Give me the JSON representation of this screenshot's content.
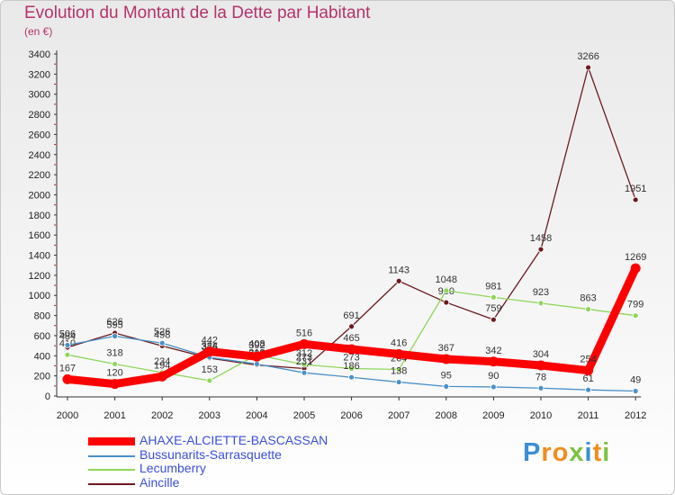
{
  "chart_data": {
    "type": "line",
    "title": "Evolution du Montant de la Dette par Habitant",
    "subtitle": "(en €)",
    "xlabel": "",
    "ylabel": "",
    "categories": [
      "2000",
      "2001",
      "2002",
      "2003",
      "2004",
      "2005",
      "2006",
      "2007",
      "2008",
      "2009",
      "2010",
      "2011",
      "2012"
    ],
    "ylim": [
      0,
      3400
    ],
    "yticks": [
      0,
      200,
      400,
      600,
      800,
      1000,
      1200,
      1400,
      1600,
      1800,
      2000,
      2200,
      2400,
      2600,
      2800,
      3000,
      3200,
      3400
    ],
    "grid": false,
    "legend_position": "bottom-left",
    "series": [
      {
        "name": "Aincille",
        "color": "#6b1a1f",
        "values": [
          484,
          626,
          498,
          376,
          308,
          273,
          691,
          1143,
          930,
          759,
          1458,
          3266,
          1951
        ]
      },
      {
        "name": "Lecumberry",
        "color": "#8fd65a",
        "values": [
          410,
          318,
          234,
          153,
          408,
          312,
          273,
          264,
          1048,
          981,
          923,
          863,
          799
        ]
      },
      {
        "name": "Bussunarits-Sarrasquette",
        "color": "#4a90c8",
        "values": [
          506,
          595,
          526,
          384,
          318,
          231,
          186,
          138,
          95,
          90,
          78,
          61,
          49
        ]
      },
      {
        "name": "AHAXE-ALCIETTE-BASCASSAN",
        "color": "#ff0000",
        "values": [
          167,
          120,
          194,
          442,
          392,
          516,
          465,
          416,
          367,
          342,
          304,
          254,
          1269
        ]
      }
    ]
  },
  "legend": [
    {
      "label": "AHAXE-ALCIETTE-BASCASSAN",
      "color": "#ff0000"
    },
    {
      "label": "Bussunarits-Sarrasquette",
      "color": "#4a90c8"
    },
    {
      "label": "Lecumberry",
      "color": "#8fd65a"
    },
    {
      "label": "Aincille",
      "color": "#6b1a1f"
    }
  ],
  "logo": {
    "text": "Proxiti",
    "letters": [
      "P",
      "r",
      "o",
      "x",
      "i",
      "t",
      "i"
    ],
    "colors": [
      "#3a8fd6",
      "#f28c1e",
      "#f28c1e",
      "#7cc242",
      "#3a8fd6",
      "#f28c1e",
      "#7cc242"
    ]
  }
}
